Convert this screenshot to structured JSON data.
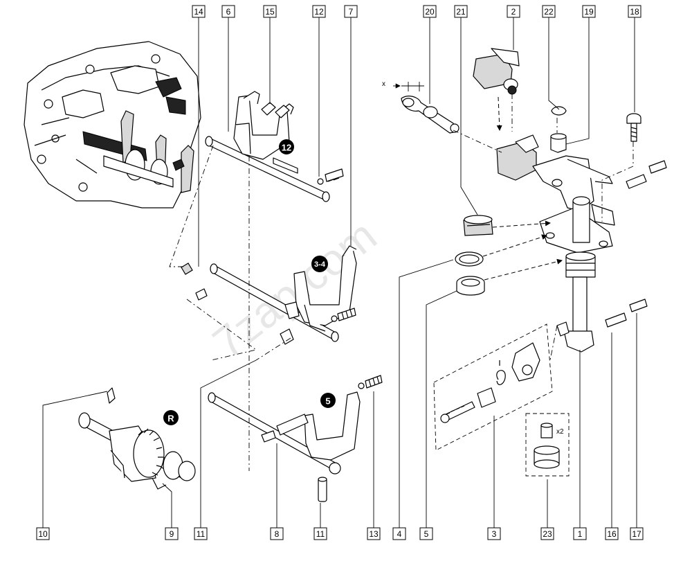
{
  "callouts_top": [
    "14",
    "6",
    "15",
    "12",
    "7",
    "20",
    "21",
    "2",
    "22",
    "19",
    "18"
  ],
  "callouts_bottom": [
    "10",
    "9",
    "11",
    "8",
    "11",
    "13",
    "4",
    "5",
    "3",
    "23",
    "1",
    "16",
    "17"
  ],
  "badges": {
    "gear_12": "12",
    "gear_34": "3-4",
    "gear_5": "5",
    "gear_r": "R"
  },
  "annotations": {
    "clearance_x": "x",
    "quantity": "x2"
  },
  "watermark": "7zap.com"
}
